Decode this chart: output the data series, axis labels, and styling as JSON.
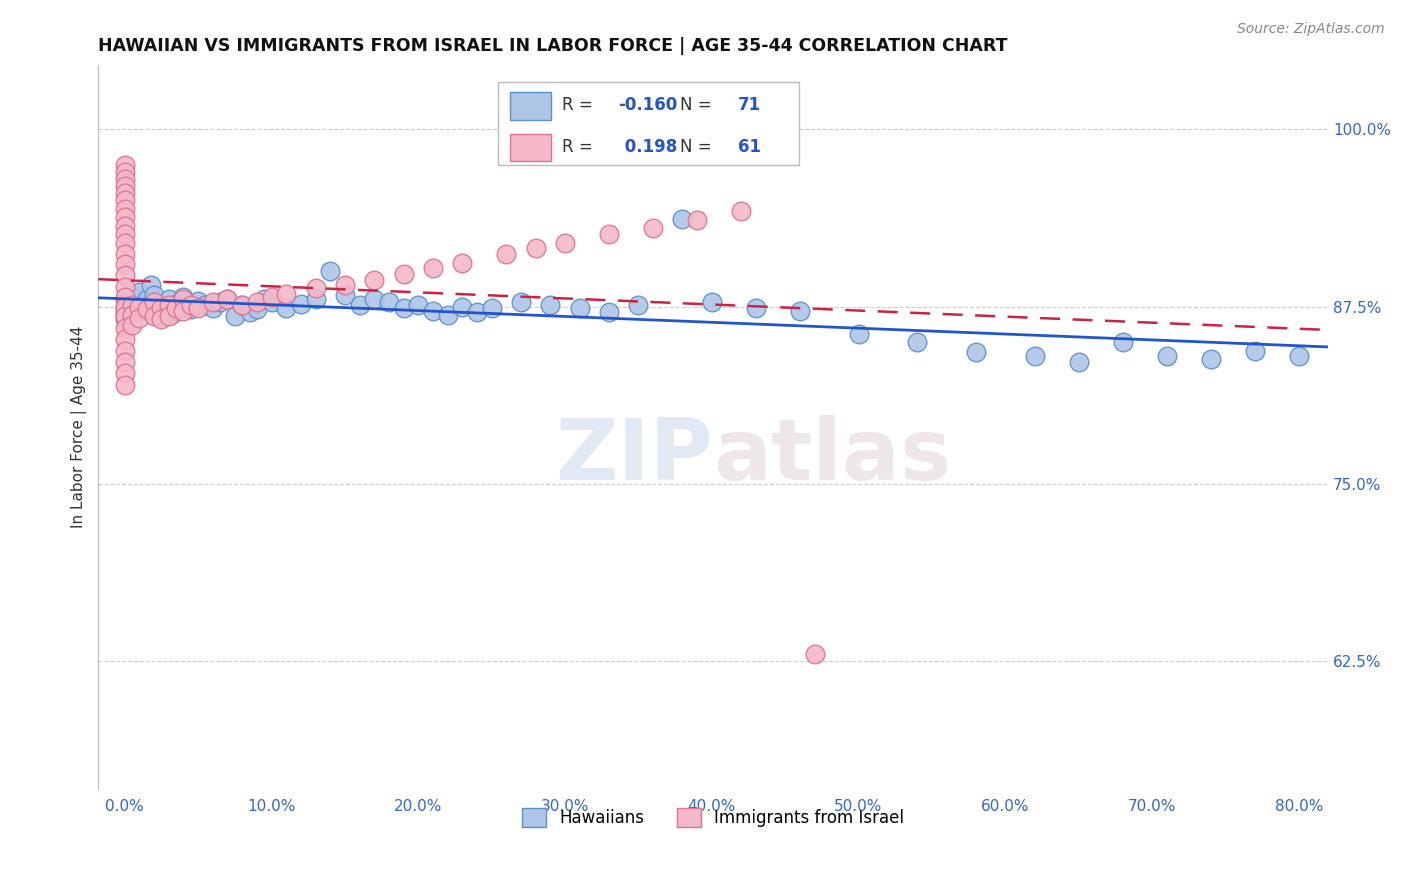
{
  "title": "HAWAIIAN VS IMMIGRANTS FROM ISRAEL IN LABOR FORCE | AGE 35-44 CORRELATION CHART",
  "source": "Source: ZipAtlas.com",
  "ylabel": "In Labor Force | Age 35-44",
  "xlabel_ticks": [
    "0.0%",
    "10.0%",
    "20.0%",
    "30.0%",
    "40.0%",
    "50.0%",
    "60.0%",
    "70.0%",
    "80.0%"
  ],
  "xlabel_vals": [
    0.0,
    0.1,
    0.2,
    0.3,
    0.4,
    0.5,
    0.6,
    0.7,
    0.8
  ],
  "ylabel_ticks": [
    "62.5%",
    "75.0%",
    "87.5%",
    "100.0%"
  ],
  "ylabel_vals": [
    0.625,
    0.75,
    0.875,
    1.0
  ],
  "ylim": [
    0.535,
    1.045
  ],
  "xlim": [
    -0.018,
    0.82
  ],
  "hawaiian_R": -0.16,
  "hawaiian_N": 71,
  "israel_R": 0.198,
  "israel_N": 61,
  "hawaiian_color": "#aec6e8",
  "hawaiian_edge": "#5b8fc9",
  "israel_color": "#f4b8c8",
  "israel_edge": "#e07090",
  "trend_hawaiian_color": "#2255cc",
  "trend_israel_color": "#cc2244",
  "hawaiian_x": [
    0.0,
    0.0,
    0.0,
    0.0,
    0.0,
    0.005,
    0.005,
    0.005,
    0.008,
    0.01,
    0.01,
    0.012,
    0.015,
    0.015,
    0.018,
    0.02,
    0.02,
    0.025,
    0.025,
    0.03,
    0.03,
    0.032,
    0.035,
    0.04,
    0.04,
    0.045,
    0.05,
    0.055,
    0.06,
    0.065,
    0.07,
    0.075,
    0.08,
    0.085,
    0.09,
    0.095,
    0.1,
    0.11,
    0.12,
    0.13,
    0.14,
    0.15,
    0.16,
    0.17,
    0.18,
    0.19,
    0.2,
    0.21,
    0.22,
    0.23,
    0.24,
    0.25,
    0.27,
    0.29,
    0.31,
    0.33,
    0.35,
    0.38,
    0.4,
    0.43,
    0.46,
    0.5,
    0.54,
    0.58,
    0.62,
    0.65,
    0.68,
    0.71,
    0.74,
    0.77,
    0.8
  ],
  "hawaiian_y": [
    0.875,
    0.872,
    0.869,
    0.866,
    0.88,
    0.882,
    0.877,
    0.87,
    0.878,
    0.874,
    0.885,
    0.876,
    0.872,
    0.88,
    0.89,
    0.883,
    0.871,
    0.876,
    0.868,
    0.874,
    0.88,
    0.87,
    0.877,
    0.875,
    0.882,
    0.873,
    0.879,
    0.876,
    0.874,
    0.878,
    0.88,
    0.868,
    0.876,
    0.871,
    0.873,
    0.88,
    0.878,
    0.874,
    0.877,
    0.88,
    0.9,
    0.883,
    0.876,
    0.88,
    0.878,
    0.874,
    0.876,
    0.872,
    0.869,
    0.875,
    0.871,
    0.874,
    0.878,
    0.876,
    0.874,
    0.871,
    0.876,
    0.937,
    0.878,
    0.874,
    0.872,
    0.856,
    0.85,
    0.843,
    0.84,
    0.836,
    0.85,
    0.84,
    0.838,
    0.844,
    0.84
  ],
  "israel_x": [
    0.0,
    0.0,
    0.0,
    0.0,
    0.0,
    0.0,
    0.0,
    0.0,
    0.0,
    0.0,
    0.0,
    0.0,
    0.0,
    0.0,
    0.0,
    0.0,
    0.0,
    0.0,
    0.0,
    0.0,
    0.0,
    0.0,
    0.0,
    0.0,
    0.005,
    0.005,
    0.005,
    0.01,
    0.01,
    0.015,
    0.02,
    0.02,
    0.025,
    0.025,
    0.03,
    0.03,
    0.035,
    0.04,
    0.04,
    0.045,
    0.05,
    0.06,
    0.07,
    0.08,
    0.09,
    0.1,
    0.11,
    0.13,
    0.15,
    0.17,
    0.19,
    0.21,
    0.23,
    0.26,
    0.28,
    0.3,
    0.33,
    0.36,
    0.39,
    0.42,
    0.47
  ],
  "israel_y": [
    0.975,
    0.97,
    0.965,
    0.96,
    0.955,
    0.95,
    0.944,
    0.938,
    0.932,
    0.926,
    0.92,
    0.912,
    0.905,
    0.897,
    0.889,
    0.882,
    0.875,
    0.868,
    0.86,
    0.852,
    0.844,
    0.836,
    0.828,
    0.82,
    0.876,
    0.869,
    0.862,
    0.875,
    0.867,
    0.873,
    0.878,
    0.868,
    0.874,
    0.866,
    0.876,
    0.868,
    0.874,
    0.88,
    0.872,
    0.876,
    0.874,
    0.878,
    0.88,
    0.876,
    0.878,
    0.882,
    0.884,
    0.888,
    0.89,
    0.894,
    0.898,
    0.902,
    0.906,
    0.912,
    0.916,
    0.92,
    0.926,
    0.93,
    0.936,
    0.942,
    0.63
  ]
}
